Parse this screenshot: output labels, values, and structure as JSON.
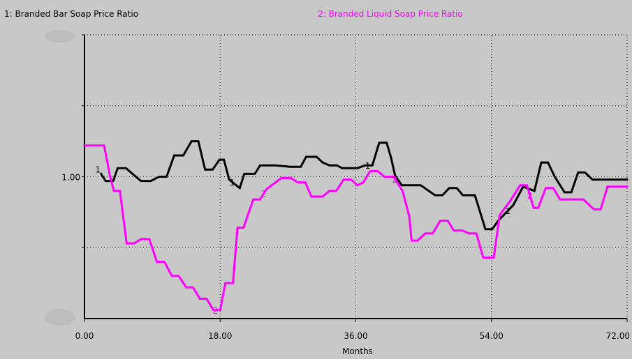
{
  "chart_data": {
    "type": "line",
    "title": "",
    "xlabel": "Months",
    "ylabel": "",
    "xlim": [
      0,
      72
    ],
    "ylim": [
      0,
      2
    ],
    "x_ticks": [
      {
        "value": 0,
        "label": "0.00"
      },
      {
        "value": 18,
        "label": "18.00"
      },
      {
        "value": 36,
        "label": "36.00"
      },
      {
        "value": 54,
        "label": "54.00"
      },
      {
        "value": 72,
        "label": "72.00"
      }
    ],
    "y_ticks": [
      {
        "value": 1,
        "label": "1.00"
      }
    ],
    "grid": true,
    "legend_placement": "top",
    "series": [
      {
        "name": "Branded Bar Soap Price Ratio",
        "legend": "1: Branded Bar Soap Price Ratio",
        "marker": "1",
        "color": "#000000",
        "points": [
          [
            2.2,
            1.02
          ],
          [
            2.8,
            0.97
          ],
          [
            3.8,
            0.97
          ],
          [
            4.4,
            1.06
          ],
          [
            5.5,
            1.06
          ],
          [
            6.6,
            1.01
          ],
          [
            7.5,
            0.97
          ],
          [
            8.8,
            0.97
          ],
          [
            9.9,
            1.0
          ],
          [
            10.9,
            1.0
          ],
          [
            11.9,
            1.15
          ],
          [
            13.1,
            1.15
          ],
          [
            14.2,
            1.25
          ],
          [
            15.1,
            1.25
          ],
          [
            16.0,
            1.05
          ],
          [
            17.0,
            1.05
          ],
          [
            17.9,
            1.12
          ],
          [
            18.5,
            1.12
          ],
          [
            19.2,
            0.98
          ],
          [
            20.6,
            0.92
          ],
          [
            21.2,
            1.02
          ],
          [
            22.6,
            1.02
          ],
          [
            23.3,
            1.08
          ],
          [
            25.3,
            1.08
          ],
          [
            27.3,
            1.07
          ],
          [
            28.7,
            1.07
          ],
          [
            29.4,
            1.14
          ],
          [
            30.8,
            1.14
          ],
          [
            31.6,
            1.1
          ],
          [
            32.5,
            1.08
          ],
          [
            33.5,
            1.08
          ],
          [
            34.2,
            1.06
          ],
          [
            36.2,
            1.06
          ],
          [
            37.2,
            1.08
          ],
          [
            38.2,
            1.08
          ],
          [
            39.1,
            1.24
          ],
          [
            40.1,
            1.24
          ],
          [
            40.7,
            1.13
          ],
          [
            41.2,
            1.01
          ],
          [
            42.1,
            0.94
          ],
          [
            44.6,
            0.94
          ],
          [
            46.5,
            0.87
          ],
          [
            47.5,
            0.87
          ],
          [
            48.4,
            0.92
          ],
          [
            49.4,
            0.92
          ],
          [
            50.2,
            0.87
          ],
          [
            51.8,
            0.87
          ],
          [
            53.2,
            0.63
          ],
          [
            54.1,
            0.63
          ],
          [
            54.9,
            0.69
          ],
          [
            56.9,
            0.8
          ],
          [
            58.2,
            0.93
          ],
          [
            59.7,
            0.9
          ],
          [
            60.6,
            1.1
          ],
          [
            61.5,
            1.1
          ],
          [
            62.4,
            1.0
          ],
          [
            63.7,
            0.89
          ],
          [
            64.6,
            0.89
          ],
          [
            65.5,
            1.03
          ],
          [
            66.4,
            1.03
          ],
          [
            67.4,
            0.98
          ],
          [
            72.0,
            0.98
          ]
        ]
      },
      {
        "name": "Branded Liquid Soap Price Ratio",
        "legend": "2: Branded Liquid Soap  Price Ratio",
        "marker": "2",
        "color": "#ff00ff",
        "points": [
          [
            0,
            1.22
          ],
          [
            2.6,
            1.22
          ],
          [
            3.4,
            1.0
          ],
          [
            3.9,
            0.9
          ],
          [
            4.7,
            0.9
          ],
          [
            5.6,
            0.53
          ],
          [
            6.6,
            0.53
          ],
          [
            7.5,
            0.56
          ],
          [
            8.6,
            0.56
          ],
          [
            9.6,
            0.4
          ],
          [
            10.6,
            0.4
          ],
          [
            11.6,
            0.3
          ],
          [
            12.5,
            0.3
          ],
          [
            13.5,
            0.22
          ],
          [
            14.4,
            0.22
          ],
          [
            15.3,
            0.14
          ],
          [
            16.2,
            0.14
          ],
          [
            17.1,
            0.06
          ],
          [
            18.0,
            0.06
          ],
          [
            18.7,
            0.25
          ],
          [
            19.7,
            0.25
          ],
          [
            20.3,
            0.64
          ],
          [
            21.1,
            0.64
          ],
          [
            22.4,
            0.84
          ],
          [
            23.3,
            0.84
          ],
          [
            24.1,
            0.91
          ],
          [
            25.1,
            0.95
          ],
          [
            26.1,
            0.99
          ],
          [
            27.4,
            0.99
          ],
          [
            28.3,
            0.96
          ],
          [
            29.3,
            0.96
          ],
          [
            30.1,
            0.86
          ],
          [
            31.6,
            0.86
          ],
          [
            32.5,
            0.9
          ],
          [
            33.4,
            0.9
          ],
          [
            34.4,
            0.98
          ],
          [
            35.4,
            0.98
          ],
          [
            36.2,
            0.94
          ],
          [
            37.0,
            0.96
          ],
          [
            37.9,
            1.04
          ],
          [
            38.9,
            1.04
          ],
          [
            39.8,
            1.0
          ],
          [
            41.0,
            1.0
          ],
          [
            42.2,
            0.9
          ],
          [
            43.1,
            0.72
          ],
          [
            43.4,
            0.55
          ],
          [
            44.2,
            0.55
          ],
          [
            45.2,
            0.6
          ],
          [
            46.2,
            0.6
          ],
          [
            47.2,
            0.69
          ],
          [
            48.2,
            0.69
          ],
          [
            49.0,
            0.62
          ],
          [
            50.2,
            0.62
          ],
          [
            51.0,
            0.6
          ],
          [
            52.0,
            0.6
          ],
          [
            52.9,
            0.43
          ],
          [
            54.3,
            0.43
          ],
          [
            55.1,
            0.73
          ],
          [
            56.5,
            0.83
          ],
          [
            57.8,
            0.94
          ],
          [
            58.7,
            0.94
          ],
          [
            59.6,
            0.78
          ],
          [
            60.2,
            0.78
          ],
          [
            61.2,
            0.92
          ],
          [
            62.2,
            0.92
          ],
          [
            63.1,
            0.84
          ],
          [
            65.4,
            0.84
          ],
          [
            66.2,
            0.84
          ],
          [
            67.6,
            0.77
          ],
          [
            68.5,
            0.77
          ],
          [
            69.4,
            0.93
          ],
          [
            72.0,
            0.93
          ]
        ],
        "marker_positions": [
          17.4,
          23.8,
          41.2,
          59.1
        ]
      }
    ],
    "marker_positions_series1": [
      1.8,
      19.6,
      37.6,
      56.2
    ]
  }
}
